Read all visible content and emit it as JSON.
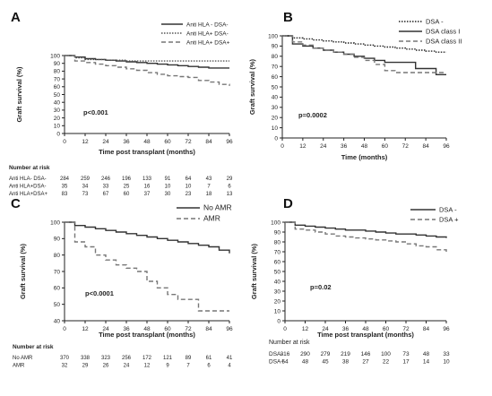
{
  "chart_data": [
    {
      "panel_letter": "A",
      "type": "line",
      "xlabel": "Time post transplant (months)",
      "ylabel": "Graft survival (%)",
      "xlim": [
        0,
        96
      ],
      "ylim": [
        0,
        100
      ],
      "x_ticks": [
        "0",
        "12",
        "24",
        "36",
        "48",
        "60",
        "72",
        "84",
        "96"
      ],
      "y_ticks": [
        "0",
        "10",
        "20",
        "30",
        "40",
        "50",
        "60",
        "70",
        "80",
        "90",
        "100"
      ],
      "grid": false,
      "legend_position": "top-right",
      "annotation": "p<0.001",
      "series": [
        {
          "name": "Anti HLA - DSA-",
          "style": "solid",
          "color": "#333333",
          "x": [
            0,
            6,
            12,
            18,
            24,
            30,
            36,
            42,
            48,
            54,
            60,
            66,
            72,
            78,
            84,
            90,
            96
          ],
          "y": [
            100,
            98,
            96,
            95,
            94,
            93,
            92,
            91,
            90,
            89,
            88,
            87,
            86,
            85,
            84,
            84,
            84
          ]
        },
        {
          "name": "Anti HLA+ DSA-",
          "style": "dotted",
          "color": "#555555",
          "x": [
            0,
            6,
            12,
            24,
            36,
            48,
            60,
            72,
            84,
            96
          ],
          "y": [
            100,
            97,
            95,
            94,
            93,
            93,
            93,
            93,
            93,
            93
          ]
        },
        {
          "name": "Anti HLA+ DSA+",
          "style": "dashed",
          "color": "#777777",
          "x": [
            0,
            6,
            12,
            18,
            24,
            30,
            36,
            42,
            48,
            54,
            60,
            66,
            72,
            78,
            84,
            90,
            96
          ],
          "y": [
            100,
            93,
            91,
            89,
            87,
            85,
            83,
            81,
            78,
            76,
            74,
            73,
            72,
            68,
            66,
            63,
            61
          ]
        }
      ],
      "risk_table": {
        "header": "Number at risk",
        "rows": [
          {
            "label": "Anti HLA- DSA-",
            "values": [
              "284",
              "259",
              "246",
              "196",
              "133",
              "91",
              "64",
              "43",
              "29"
            ]
          },
          {
            "label": "Anti HLA+DSA-",
            "values": [
              "35",
              "34",
              "33",
              "25",
              "16",
              "10",
              "10",
              "7",
              "6"
            ]
          },
          {
            "label": "Anti HLA+DSA+",
            "values": [
              "83",
              "73",
              "67",
              "60",
              "37",
              "30",
              "23",
              "18",
              "13"
            ]
          }
        ]
      }
    },
    {
      "panel_letter": "B",
      "type": "line",
      "xlabel": "Time (months)",
      "ylabel": "Graft survival (%)",
      "xlim": [
        0,
        96
      ],
      "ylim": [
        0,
        100
      ],
      "x_ticks": [
        "0",
        "12",
        "24",
        "36",
        "48",
        "60",
        "72",
        "84",
        "96"
      ],
      "y_ticks": [
        "0",
        "10",
        "20",
        "30",
        "40",
        "50",
        "60",
        "70",
        "80",
        "90",
        "100"
      ],
      "grid": false,
      "legend_position": "top-right",
      "annotation": "p=0.0002",
      "series": [
        {
          "name": "DSA -",
          "style": "dotted",
          "color": "#222222",
          "x": [
            0,
            6,
            12,
            18,
            24,
            30,
            36,
            42,
            48,
            54,
            60,
            66,
            72,
            78,
            84,
            90,
            96
          ],
          "y": [
            100,
            98,
            97,
            96,
            95,
            94,
            93,
            92,
            91,
            90,
            89,
            88,
            87,
            86,
            85,
            84,
            84
          ]
        },
        {
          "name": "DSA class I",
          "style": "solid",
          "color": "#333333",
          "x": [
            0,
            6,
            12,
            18,
            24,
            30,
            36,
            42,
            48,
            54,
            60,
            66,
            72,
            78,
            84,
            90,
            96
          ],
          "y": [
            100,
            92,
            90,
            88,
            86,
            84,
            82,
            80,
            78,
            76,
            74,
            74,
            74,
            68,
            68,
            62,
            62
          ]
        },
        {
          "name": "DSA class II",
          "style": "dashed",
          "color": "#777777",
          "x": [
            0,
            6,
            12,
            18,
            24,
            30,
            36,
            42,
            48,
            54,
            60,
            66,
            72,
            78,
            84,
            90,
            96
          ],
          "y": [
            100,
            94,
            91,
            88,
            86,
            84,
            82,
            79,
            76,
            72,
            66,
            64,
            64,
            64,
            64,
            64,
            64
          ]
        }
      ]
    },
    {
      "panel_letter": "C",
      "type": "line",
      "xlabel": "Time post transplant (months)",
      "ylabel": "Graft survival (%)",
      "xlim": [
        0,
        96
      ],
      "ylim": [
        40,
        100
      ],
      "x_ticks": [
        "0",
        "12",
        "24",
        "36",
        "48",
        "60",
        "72",
        "84",
        "96"
      ],
      "y_ticks": [
        "40",
        "50",
        "60",
        "70",
        "80",
        "90",
        "100"
      ],
      "grid": false,
      "legend_position": "top-right",
      "annotation": "p<0.0001",
      "series": [
        {
          "name": "No AMR",
          "style": "solid",
          "color": "#333333",
          "x": [
            0,
            6,
            12,
            18,
            24,
            30,
            36,
            42,
            48,
            54,
            60,
            66,
            72,
            78,
            84,
            90,
            96
          ],
          "y": [
            100,
            98,
            97,
            96,
            95,
            94,
            93,
            92,
            91,
            90,
            89,
            88,
            87,
            86,
            85,
            83,
            81
          ]
        },
        {
          "name": "AMR",
          "style": "dashed",
          "color": "#777777",
          "x": [
            0,
            6,
            12,
            18,
            24,
            30,
            36,
            42,
            48,
            54,
            60,
            66,
            72,
            78,
            84,
            90,
            96
          ],
          "y": [
            100,
            88,
            85,
            80,
            77,
            74,
            72,
            70,
            64,
            60,
            56,
            53,
            53,
            46,
            46,
            46,
            46
          ]
        }
      ],
      "risk_table": {
        "header": "Number at risk",
        "rows": [
          {
            "label": "No  AMR",
            "values": [
              "370",
              "338",
              "323",
              "256",
              "172",
              "121",
              "89",
              "61",
              "41"
            ]
          },
          {
            "label": "AMR",
            "values": [
              "32",
              "29",
              "26",
              "24",
              "12",
              "9",
              "7",
              "6",
              "4"
            ]
          }
        ]
      }
    },
    {
      "panel_letter": "D",
      "type": "line",
      "xlabel": "Time post transplant (months)",
      "ylabel": "Graft survival (%)",
      "xlim": [
        0,
        96
      ],
      "ylim": [
        0,
        100
      ],
      "x_ticks": [
        "0",
        "12",
        "24",
        "36",
        "48",
        "60",
        "72",
        "84",
        "96"
      ],
      "y_ticks": [
        "0",
        "10",
        "20",
        "30",
        "40",
        "50",
        "60",
        "70",
        "80",
        "90",
        "100"
      ],
      "grid": false,
      "legend_position": "top-right",
      "annotation": "p=0.02",
      "series": [
        {
          "name": "DSA -",
          "style": "solid",
          "color": "#333333",
          "x": [
            0,
            6,
            12,
            18,
            24,
            30,
            36,
            42,
            48,
            54,
            60,
            66,
            72,
            78,
            84,
            90,
            96
          ],
          "y": [
            100,
            97,
            96,
            95,
            94,
            93,
            92,
            92,
            91,
            90,
            89,
            88,
            88,
            87,
            86,
            85,
            84
          ]
        },
        {
          "name": "DSA +",
          "style": "dashed",
          "color": "#777777",
          "x": [
            0,
            6,
            12,
            18,
            24,
            30,
            36,
            42,
            48,
            54,
            60,
            66,
            72,
            78,
            84,
            90,
            96
          ],
          "y": [
            100,
            93,
            92,
            90,
            88,
            86,
            85,
            84,
            83,
            82,
            81,
            80,
            78,
            76,
            75,
            72,
            70
          ]
        }
      ],
      "risk_table": {
        "header": "Number at risk",
        "rows": [
          {
            "label": "DSA-",
            "values": [
              "316",
              "290",
              "279",
              "219",
              "146",
              "100",
              "73",
              "48",
              "33"
            ]
          },
          {
            "label": "DSA+",
            "values": [
              "54",
              "48",
              "45",
              "38",
              "27",
              "22",
              "17",
              "14",
              "10"
            ]
          }
        ]
      }
    }
  ]
}
